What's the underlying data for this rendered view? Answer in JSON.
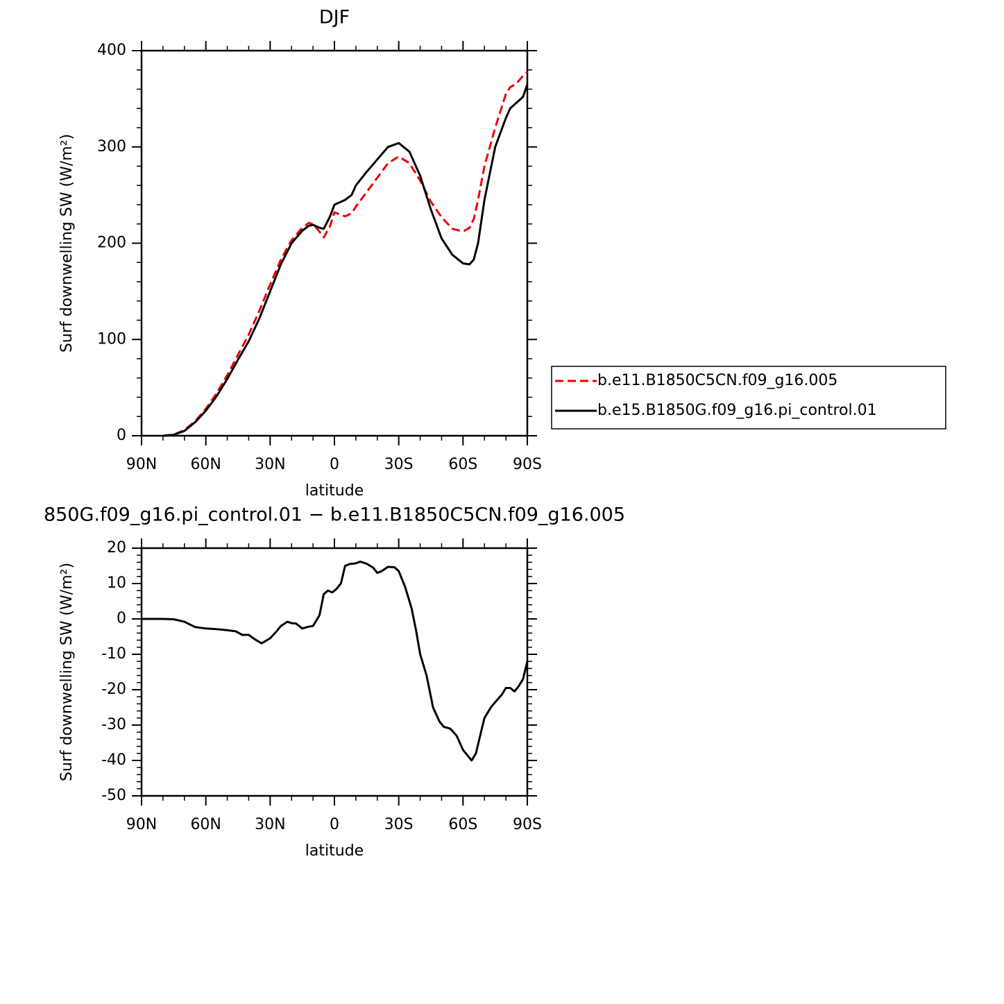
{
  "chart_data": [
    {
      "type": "line",
      "title": "DJF",
      "xlabel": "latitude",
      "ylabel": "Surf downwelling SW (W/m²)",
      "x": [
        80,
        75,
        70,
        65,
        60,
        55,
        50,
        45,
        40,
        35,
        30,
        25,
        20,
        15,
        12,
        10,
        7,
        5,
        2,
        0,
        -5,
        -8,
        -10,
        -15,
        -20,
        -25,
        -30,
        -35,
        -40,
        -45,
        -50,
        -55,
        -60,
        -63,
        -65,
        -67,
        -70,
        -75,
        -80,
        -82,
        -85,
        -88,
        -90
      ],
      "series": [
        {
          "name": "b.e11.B1850C5CN.f09_g16.005",
          "color": "#ee0000",
          "dashed": true,
          "values": [
            0,
            1,
            6,
            15,
            28,
            44,
            63,
            84,
            105,
            130,
            157,
            183,
            203,
            216,
            221,
            220,
            212,
            206,
            218,
            232,
            228,
            231,
            238,
            253,
            268,
            283,
            290,
            283,
            265,
            243,
            227,
            215,
            212,
            216,
            225,
            245,
            280,
            320,
            355,
            362,
            366,
            374,
            378
          ]
        },
        {
          "name": "b.e15.B1850G.f09_g16.pi_control.01",
          "color": "#000000",
          "dashed": false,
          "values": [
            0,
            1,
            5,
            14,
            26,
            41,
            59,
            79,
            98,
            122,
            150,
            178,
            200,
            213,
            218,
            219,
            216,
            215,
            228,
            240,
            245,
            250,
            260,
            274,
            287,
            300,
            304,
            295,
            270,
            235,
            205,
            188,
            179,
            178,
            183,
            200,
            245,
            300,
            330,
            340,
            346,
            352,
            365
          ]
        }
      ],
      "xlim": [
        90,
        -90
      ],
      "xticks": [
        {
          "value": 90,
          "label": "90N"
        },
        {
          "value": 60,
          "label": "60N"
        },
        {
          "value": 30,
          "label": "30N"
        },
        0,
        {
          "value": -30,
          "label": "30S"
        },
        {
          "value": -60,
          "label": "60S"
        },
        {
          "value": -90,
          "label": "90S"
        }
      ],
      "xminorticks": [
        80,
        70,
        50,
        40,
        20,
        10,
        -10,
        -20,
        -40,
        -50,
        -70,
        -80
      ],
      "ylim": [
        0,
        400
      ],
      "yticks": [
        0,
        100,
        200,
        300,
        400
      ],
      "yminorticks": [
        20,
        40,
        60,
        80,
        120,
        140,
        160,
        180,
        220,
        240,
        260,
        280,
        320,
        340,
        360,
        380
      ],
      "legend": "right"
    },
    {
      "type": "line",
      "title": "850G.f09_g16.pi_control.01 − b.e11.B1850C5CN.f09_g16.005",
      "xlabel": "latitude",
      "ylabel": "Surf downwelling SW (W/m²)",
      "x": [
        90,
        80,
        75,
        70,
        65,
        60,
        55,
        50,
        46,
        43,
        40,
        37,
        34,
        30,
        27,
        25,
        22,
        20,
        18,
        15,
        12,
        10,
        7,
        5,
        3,
        1,
        -1,
        -3,
        -5,
        -7,
        -10,
        -12,
        -15,
        -18,
        -20,
        -22,
        -25,
        -28,
        -30,
        -33,
        -36,
        -38,
        -40,
        -43,
        -46,
        -49,
        -51,
        -54,
        -57,
        -60,
        -64,
        -66,
        -68,
        -70,
        -73,
        -75,
        -78,
        -80,
        -82,
        -84,
        -86,
        -88,
        -90
      ],
      "series": [
        {
          "color": "#000000",
          "dashed": false,
          "values": [
            0,
            0,
            -0.1,
            -0.8,
            -2.3,
            -2.7,
            -2.9,
            -3.2,
            -3.5,
            -4.5,
            -4.5,
            -5.8,
            -6.9,
            -5.5,
            -3.5,
            -2.0,
            -0.8,
            -1.2,
            -1.3,
            -2.7,
            -2.2,
            -2.0,
            1.0,
            7.0,
            8.0,
            7.5,
            8.5,
            10,
            15,
            15.5,
            15.7,
            16.2,
            15.6,
            14.5,
            13,
            13.5,
            14.7,
            14.6,
            13.5,
            9,
            3,
            -3,
            -10,
            -16,
            -25,
            -29,
            -30.5,
            -31,
            -33,
            -37,
            -40,
            -38,
            -33,
            -28,
            -25,
            -23.5,
            -21.5,
            -19.5,
            -19.5,
            -20.5,
            -19,
            -17,
            -12
          ]
        }
      ],
      "xlim": [
        90,
        -90
      ],
      "xticks": [
        {
          "value": 90,
          "label": "90N"
        },
        {
          "value": 60,
          "label": "60N"
        },
        {
          "value": 30,
          "label": "30N"
        },
        0,
        {
          "value": -30,
          "label": "30S"
        },
        {
          "value": -60,
          "label": "60S"
        },
        {
          "value": -90,
          "label": "90S"
        }
      ],
      "xminorticks": [
        80,
        70,
        50,
        40,
        20,
        10,
        -10,
        -20,
        -40,
        -50,
        -70,
        -80
      ],
      "ylim": [
        -50,
        20
      ],
      "yticks": [
        -50,
        -40,
        -30,
        -20,
        -10,
        0,
        10,
        20
      ],
      "yminorticks": [
        -48,
        -46,
        -44,
        -42,
        -38,
        -36,
        -34,
        -32,
        -28,
        -26,
        -24,
        -22,
        -18,
        -16,
        -14,
        -12,
        -8,
        -6,
        -4,
        -2,
        2,
        4,
        6,
        8,
        12,
        14,
        16,
        18
      ]
    }
  ]
}
